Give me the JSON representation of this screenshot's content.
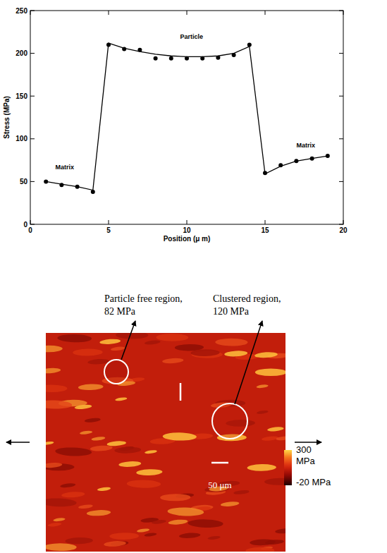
{
  "chart_data": {
    "type": "line",
    "xlabel": "Position (μ m)",
    "ylabel": "Stress (MPa)",
    "xlim": [
      0,
      20
    ],
    "ylim": [
      0,
      250
    ],
    "xticks": [
      0,
      5,
      10,
      15,
      20
    ],
    "yticks": [
      0,
      50,
      100,
      150,
      200,
      250
    ],
    "grid": false,
    "series": [
      {
        "type": "scatter",
        "marker": "circle",
        "color": "#000000",
        "x": [
          1,
          2,
          3,
          4,
          5,
          6,
          7,
          8,
          9,
          10,
          11,
          12,
          13,
          14,
          15,
          16,
          17,
          18,
          19
        ],
        "values": [
          50,
          46,
          44,
          38,
          210,
          205,
          204,
          194,
          194,
          194,
          194,
          195,
          198,
          210,
          60,
          69,
          74,
          77,
          80
        ]
      },
      {
        "type": "line",
        "line_style": "solid",
        "color": "#000000",
        "x": [
          1,
          2,
          3,
          4,
          5,
          6,
          7,
          8,
          9,
          10,
          11,
          12,
          13,
          14,
          15,
          16,
          17,
          18,
          19
        ],
        "values": [
          50,
          47,
          44,
          40,
          212,
          206,
          202,
          199,
          197,
          196,
          196,
          197,
          200,
          208,
          59,
          68,
          74,
          77,
          80
        ]
      }
    ],
    "annotations": [
      {
        "text": "Matrix",
        "x": 2.2,
        "y": 64
      },
      {
        "text": "Particle",
        "x": 10.3,
        "y": 217
      },
      {
        "text": "Matrix",
        "x": 17.6,
        "y": 90
      }
    ]
  },
  "stress_map": {
    "regions": [
      {
        "label": "Particle free region,",
        "value": 82,
        "value_label": "82 MPa"
      },
      {
        "label": "Clustered region,",
        "value": 120,
        "value_label": "120 MPa"
      }
    ],
    "colorbar": {
      "range": [
        -20,
        300
      ],
      "ticks": [
        {
          "value": 300,
          "label": "300 MPa"
        },
        {
          "value": -20,
          "label": "-20 MPa"
        }
      ]
    },
    "scale_bar": {
      "value": 50,
      "label": "50 μm"
    }
  }
}
